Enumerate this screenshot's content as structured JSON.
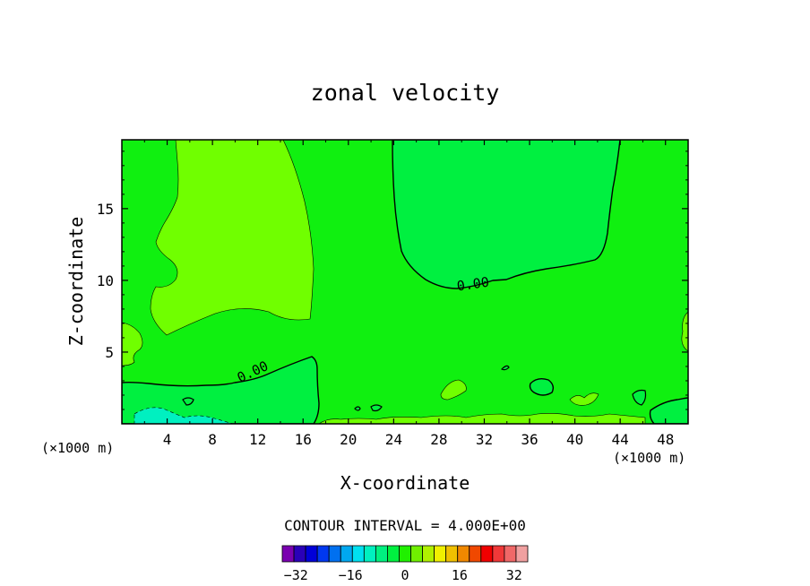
{
  "chart_data": {
    "type": "contour",
    "title": "zonal velocity",
    "xlabel": "X-coordinate",
    "ylabel": "Z-coordinate",
    "x_unit_label_left": "(×1000 m)",
    "x_unit_label_right": "(×1000 m)",
    "xlim": [
      0,
      50
    ],
    "ylim": [
      0,
      19.8
    ],
    "x_ticks": [
      4,
      8,
      12,
      16,
      20,
      24,
      28,
      32,
      36,
      40,
      44,
      48
    ],
    "y_ticks": [
      5,
      10,
      15
    ],
    "contour_interval_text": "CONTOUR INTERVAL = 4.000E+00",
    "contour_labels": [
      "0.00",
      "0.00"
    ],
    "colorbar": {
      "range": [
        -36,
        36
      ],
      "ticks": [
        -32,
        -16,
        0,
        16,
        32
      ],
      "colors": [
        "#7a00b0",
        "#2a00b8",
        "#0000d8",
        "#0038f0",
        "#0070f0",
        "#00a8f0",
        "#00e0f0",
        "#00f0c0",
        "#00f080",
        "#00f040",
        "#20f000",
        "#70f000",
        "#b0f000",
        "#f0f000",
        "#f0c000",
        "#f08800",
        "#f04800",
        "#f00000",
        "#f03838",
        "#f06868",
        "#f0a0a0"
      ]
    },
    "fields": {
      "background_color": "#10f010",
      "regions": [
        {
          "name": "positive-upper-left",
          "color": "#70ff00",
          "value_band": "4 to 8"
        },
        {
          "name": "negative-upper-right",
          "color": "#00f040",
          "value_band": "-4 to 0"
        },
        {
          "name": "negative-lower-left",
          "color": "#00f040",
          "value_band": "-4 to 0"
        }
      ]
    }
  }
}
